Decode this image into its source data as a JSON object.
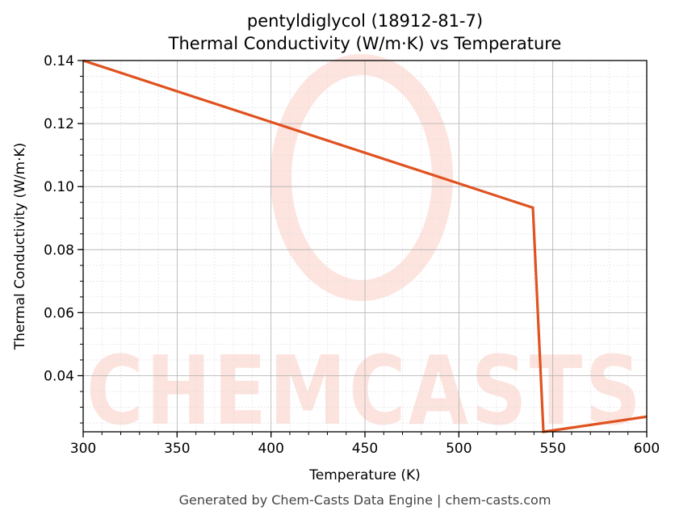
{
  "chart_data": {
    "type": "line",
    "title_line1": "pentyldiglycol (18912-81-7)",
    "title_line2": "Thermal Conductivity (W/m·K) vs Temperature",
    "xlabel": "Temperature (K)",
    "ylabel": "Thermal Conductivity (W/m·K)",
    "xlim": [
      300,
      600
    ],
    "ylim": [
      0.0222,
      0.14
    ],
    "xticks": [
      300,
      350,
      400,
      450,
      500,
      550,
      600
    ],
    "xtick_labels": [
      "300",
      "350",
      "400",
      "450",
      "500",
      "550",
      "600"
    ],
    "yticks": [
      0.04,
      0.06,
      0.08,
      0.1,
      0.12,
      0.14
    ],
    "ytick_labels": [
      "0.04",
      "0.06",
      "0.08",
      "0.10",
      "0.12",
      "0.14"
    ],
    "grid": true,
    "series": [
      {
        "color": "#e0521f",
        "x": [
          300,
          539.4,
          545,
          600
        ],
        "y": [
          0.14,
          0.0933,
          0.0222,
          0.027
        ]
      }
    ]
  },
  "watermark": "CHEMCASTS",
  "footer": "Generated by Chem-Casts Data Engine | chem-casts.com"
}
